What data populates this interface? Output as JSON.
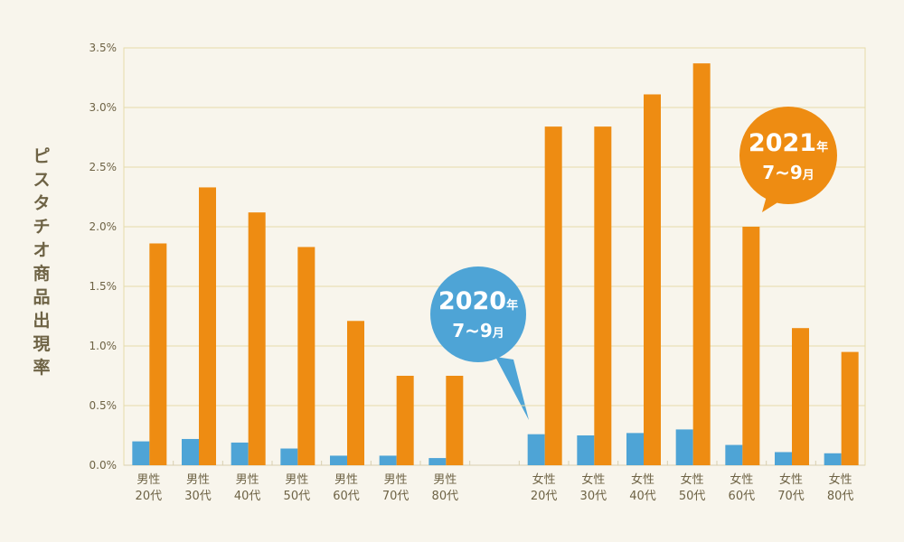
{
  "chart_data": {
    "type": "bar",
    "title": "",
    "ylabel": "ピスタチオ商品出現率",
    "xlabel": "",
    "ylim": [
      0,
      3.5
    ],
    "yticks": [
      "0.0%",
      "0.5%",
      "1.0%",
      "1.5%",
      "2.0%",
      "2.5%",
      "3.0%",
      "3.5%"
    ],
    "grid": true,
    "categories": [
      [
        "男性",
        "20代"
      ],
      [
        "男性",
        "30代"
      ],
      [
        "男性",
        "40代"
      ],
      [
        "男性",
        "50代"
      ],
      [
        "男性",
        "60代"
      ],
      [
        "男性",
        "70代"
      ],
      [
        "男性",
        "80代"
      ],
      [
        "女性",
        "20代"
      ],
      [
        "女性",
        "30代"
      ],
      [
        "女性",
        "40代"
      ],
      [
        "女性",
        "50代"
      ],
      [
        "女性",
        "60代"
      ],
      [
        "女性",
        "70代"
      ],
      [
        "女性",
        "80代"
      ]
    ],
    "series": [
      {
        "name": "2020年7~9月",
        "color": "#4ea4d6",
        "values": [
          0.2,
          0.22,
          0.19,
          0.14,
          0.08,
          0.08,
          0.06,
          0.26,
          0.25,
          0.27,
          0.3,
          0.17,
          0.11,
          0.1
        ]
      },
      {
        "name": "2021年7~9月",
        "color": "#ee8c12",
        "values": [
          1.86,
          2.33,
          2.12,
          1.83,
          1.21,
          0.75,
          0.75,
          2.84,
          2.84,
          3.11,
          3.37,
          2.0,
          1.15,
          0.95
        ]
      }
    ],
    "annotations": {
      "s2020": {
        "year": "2020",
        "year_suffix": "年",
        "months": "7~9",
        "month_suffix": "月"
      },
      "s2021": {
        "year": "2021",
        "year_suffix": "年",
        "months": "7~9",
        "month_suffix": "月"
      }
    }
  }
}
